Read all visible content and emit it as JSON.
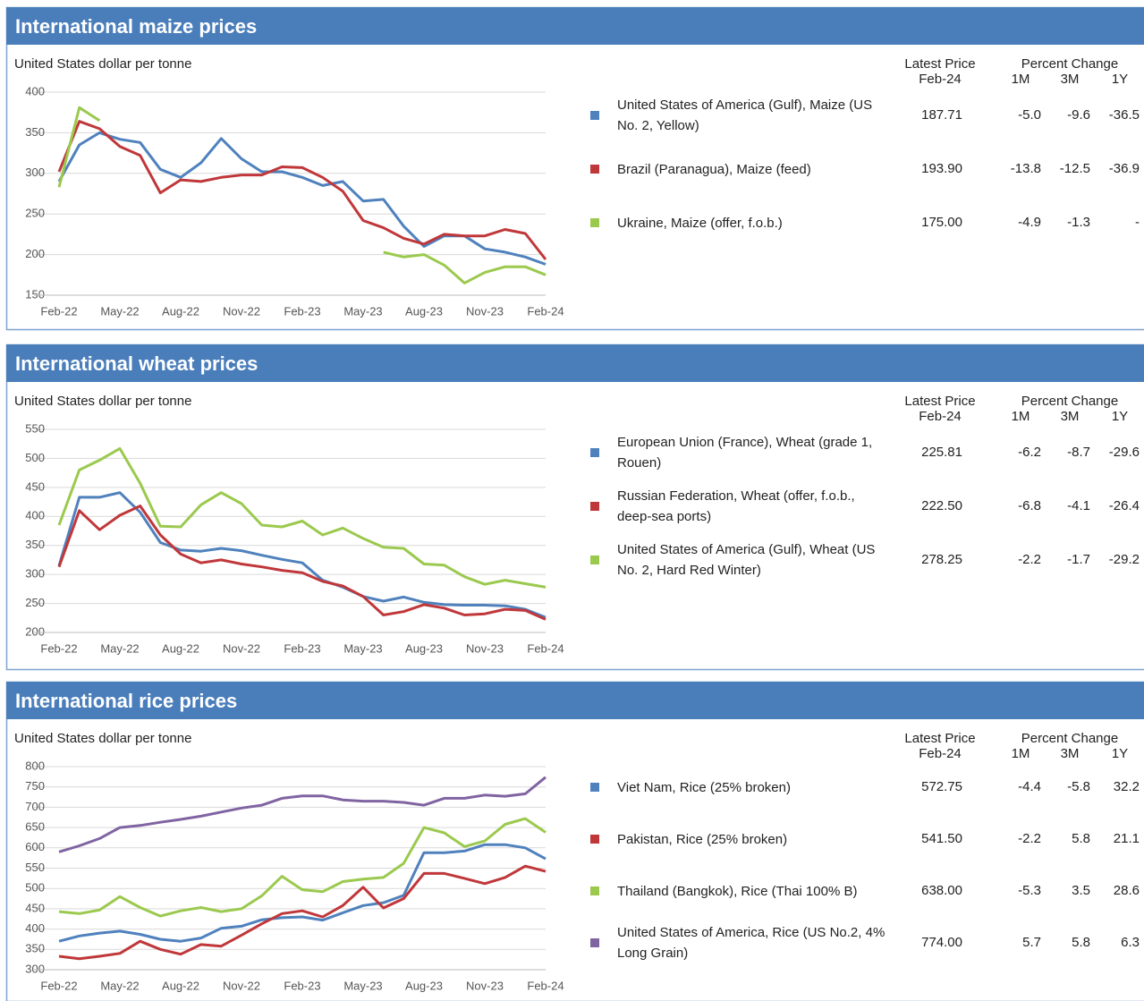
{
  "chart_data": [
    {
      "type": "line",
      "title": "International maize prices",
      "y_label": "United States dollar per tonne",
      "categories": [
        "Feb-22",
        null,
        null,
        "May-22",
        null,
        null,
        "Aug-22",
        null,
        null,
        "Nov-22",
        null,
        null,
        "Feb-23",
        null,
        null,
        "May-23",
        null,
        null,
        "Aug-23",
        null,
        null,
        "Nov-23",
        null,
        null,
        "Feb-24"
      ],
      "ylim": [
        150,
        400
      ],
      "yticks": [
        150,
        200,
        250,
        300,
        350,
        400
      ],
      "grid": true,
      "table": {
        "price_header": "Latest Price",
        "date": "Feb-24",
        "change_header": "Percent Change",
        "periods": [
          "1M",
          "3M",
          "1Y"
        ]
      },
      "series": [
        {
          "name": "United States of America (Gulf), Maize (US No. 2, Yellow)",
          "color": "#4f81bd",
          "values": [
            290,
            335,
            350,
            342,
            338,
            305,
            295,
            313,
            343,
            318,
            302,
            302,
            295,
            285,
            290,
            266,
            268,
            235,
            210,
            223,
            223,
            207,
            203,
            197,
            188
          ],
          "latest_price": "187.71",
          "changes": [
            "-5.0",
            "-9.6",
            "-36.5"
          ]
        },
        {
          "name": "Brazil (Paranagua), Maize (feed)",
          "color": "#c0373a",
          "values": [
            302,
            364,
            355,
            333,
            322,
            276,
            292,
            290,
            295,
            298,
            298,
            308,
            307,
            295,
            278,
            242,
            233,
            220,
            213,
            225,
            223,
            223,
            231,
            226,
            194
          ],
          "latest_price": "193.90",
          "changes": [
            "-13.8",
            "-12.5",
            "-36.9"
          ]
        },
        {
          "name": "Ukraine, Maize (offer, f.o.b.)",
          "color": "#9bc94e",
          "values": [
            283,
            381,
            365,
            null,
            null,
            null,
            null,
            null,
            null,
            null,
            null,
            null,
            null,
            null,
            null,
            null,
            203,
            197,
            200,
            187,
            165,
            178,
            185,
            185,
            175
          ],
          "latest_price": "175.00",
          "changes": [
            "-4.9",
            "-1.3",
            "-"
          ]
        }
      ]
    },
    {
      "type": "line",
      "title": "International wheat prices",
      "y_label": "United States dollar per tonne",
      "categories": [
        "Feb-22",
        null,
        null,
        "May-22",
        null,
        null,
        "Aug-22",
        null,
        null,
        "Nov-22",
        null,
        null,
        "Feb-23",
        null,
        null,
        "May-23",
        null,
        null,
        "Aug-23",
        null,
        null,
        "Nov-23",
        null,
        null,
        "Feb-24"
      ],
      "ylim": [
        200,
        550
      ],
      "yticks": [
        200,
        250,
        300,
        350,
        400,
        450,
        500,
        550
      ],
      "grid": true,
      "table": {
        "price_header": "Latest Price",
        "date": "Feb-24",
        "change_header": "Percent Change",
        "periods": [
          "1M",
          "3M",
          "1Y"
        ]
      },
      "series": [
        {
          "name": "European Union (France), Wheat (grade 1, Rouen)",
          "color": "#4f81bd",
          "values": [
            315,
            433,
            433,
            441,
            407,
            355,
            342,
            340,
            345,
            341,
            333,
            326,
            320,
            290,
            278,
            262,
            254,
            261,
            252,
            248,
            247,
            247,
            246,
            240,
            226
          ],
          "latest_price": "225.81",
          "changes": [
            "-6.2",
            "-8.7",
            "-29.6"
          ]
        },
        {
          "name": "Russian Federation, Wheat (offer, f.o.b., deep-sea ports)",
          "color": "#c0373a",
          "values": [
            313,
            410,
            377,
            402,
            418,
            368,
            335,
            320,
            325,
            318,
            313,
            307,
            303,
            288,
            280,
            262,
            230,
            236,
            248,
            242,
            230,
            232,
            240,
            238,
            222.5
          ],
          "latest_price": "222.50",
          "changes": [
            "-6.8",
            "-4.1",
            "-26.4"
          ]
        },
        {
          "name": "United States of America (Gulf), Wheat (US No. 2, Hard Red Winter)",
          "color": "#9bc94e",
          "values": [
            385,
            480,
            497,
            517,
            457,
            383,
            382,
            420,
            441,
            422,
            385,
            382,
            392,
            368,
            380,
            362,
            347,
            345,
            318,
            316,
            296,
            283,
            290,
            284,
            278
          ],
          "latest_price": "278.25",
          "changes": [
            "-2.2",
            "-1.7",
            "-29.2"
          ]
        }
      ]
    },
    {
      "type": "line",
      "title": "International rice prices",
      "y_label": "United States dollar per tonne",
      "categories": [
        "Feb-22",
        null,
        null,
        "May-22",
        null,
        null,
        "Aug-22",
        null,
        null,
        "Nov-22",
        null,
        null,
        "Feb-23",
        null,
        null,
        "May-23",
        null,
        null,
        "Aug-23",
        null,
        null,
        "Nov-23",
        null,
        null,
        "Feb-24"
      ],
      "ylim": [
        300,
        800
      ],
      "yticks": [
        300,
        350,
        400,
        450,
        500,
        550,
        600,
        650,
        700,
        750,
        800
      ],
      "grid": true,
      "table": {
        "price_header": "Latest Price",
        "date": "Feb-24",
        "change_header": "Percent Change",
        "periods": [
          "1M",
          "3M",
          "1Y"
        ]
      },
      "series": [
        {
          "name": "Viet Nam, Rice (25% broken)",
          "color": "#4f81bd",
          "values": [
            370,
            383,
            390,
            395,
            387,
            375,
            370,
            378,
            402,
            407,
            423,
            428,
            430,
            422,
            440,
            458,
            465,
            483,
            588,
            588,
            592,
            608,
            608,
            600,
            573
          ],
          "latest_price": "572.75",
          "changes": [
            "-4.4",
            "-5.8",
            "32.2"
          ]
        },
        {
          "name": "Pakistan, Rice (25% broken)",
          "color": "#c0373a",
          "values": [
            333,
            327,
            333,
            340,
            370,
            350,
            338,
            362,
            358,
            385,
            413,
            438,
            445,
            430,
            458,
            503,
            452,
            475,
            537,
            537,
            525,
            512,
            527,
            555,
            542
          ],
          "latest_price": "541.50",
          "changes": [
            "-2.2",
            "5.8",
            "21.1"
          ]
        },
        {
          "name": "Thailand (Bangkok), Rice (Thai 100% B)",
          "color": "#9bc94e",
          "values": [
            443,
            438,
            447,
            480,
            453,
            432,
            445,
            453,
            443,
            450,
            482,
            530,
            497,
            492,
            517,
            523,
            527,
            562,
            650,
            637,
            603,
            617,
            658,
            672,
            638
          ],
          "latest_price": "638.00",
          "changes": [
            "-5.3",
            "3.5",
            "28.6"
          ]
        },
        {
          "name": "United States of America, Rice (US No.2, 4% Long Grain)",
          "color": "#8064a2",
          "values": [
            590,
            605,
            623,
            650,
            655,
            663,
            670,
            678,
            688,
            698,
            705,
            722,
            728,
            728,
            718,
            715,
            715,
            712,
            705,
            722,
            722,
            730,
            727,
            733,
            774
          ],
          "latest_price": "774.00",
          "changes": [
            "5.7",
            "5.8",
            "6.3"
          ]
        }
      ]
    }
  ]
}
